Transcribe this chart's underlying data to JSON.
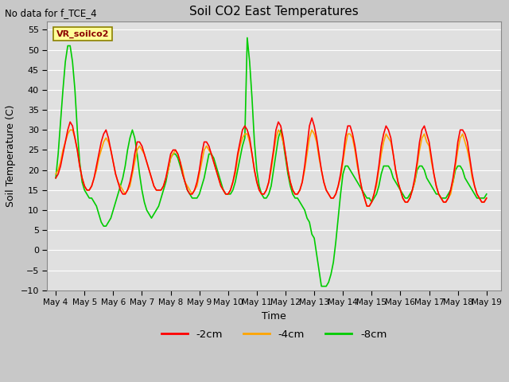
{
  "title": "Soil CO2 East Temperatures",
  "no_data_note": "No data for f_TCE_4",
  "vr_label": "VR_soilco2",
  "xlabel": "Time",
  "ylabel": "Soil Temperature (C)",
  "ylim": [
    -10,
    57
  ],
  "xlim": [
    -0.3,
    15.5
  ],
  "yticks": [
    -10,
    -5,
    0,
    5,
    10,
    15,
    20,
    25,
    30,
    35,
    40,
    45,
    50,
    55
  ],
  "xtick_labels": [
    "May 4",
    "May 5",
    "May 6",
    "May 7",
    "May 8",
    "May 9",
    "May 10",
    "May 11",
    "May 12",
    "May 13",
    "May 14",
    "May 15",
    "May 16",
    "May 17",
    "May 18",
    "May 19"
  ],
  "xtick_positions": [
    0,
    1,
    2,
    3,
    4,
    5,
    6,
    7,
    8,
    9,
    10,
    11,
    12,
    13,
    14,
    15
  ],
  "line_colors": {
    "m2cm": "#ff0000",
    "m4cm": "#ffa500",
    "m8cm": "#00cc00"
  },
  "line_widths": {
    "m2cm": 1.2,
    "m4cm": 1.2,
    "m8cm": 1.2
  },
  "bg_color": "#c8c8c8",
  "plot_bg_color": "#e0e0e0",
  "legend_items": [
    "-2cm",
    "-4cm",
    "-8cm"
  ],
  "legend_colors": [
    "#ff0000",
    "#ffa500",
    "#00cc00"
  ],
  "x_common": [
    0.0,
    0.083,
    0.167,
    0.25,
    0.333,
    0.417,
    0.5,
    0.583,
    0.667,
    0.75,
    0.833,
    0.917,
    1.0,
    1.083,
    1.167,
    1.25,
    1.333,
    1.417,
    1.5,
    1.583,
    1.667,
    1.75,
    1.833,
    1.917,
    2.0,
    2.083,
    2.167,
    2.25,
    2.333,
    2.417,
    2.5,
    2.583,
    2.667,
    2.75,
    2.833,
    2.917,
    3.0,
    3.083,
    3.167,
    3.25,
    3.333,
    3.417,
    3.5,
    3.583,
    3.667,
    3.75,
    3.833,
    3.917,
    4.0,
    4.083,
    4.167,
    4.25,
    4.333,
    4.417,
    4.5,
    4.583,
    4.667,
    4.75,
    4.833,
    4.917,
    5.0,
    5.083,
    5.167,
    5.25,
    5.333,
    5.417,
    5.5,
    5.583,
    5.667,
    5.75,
    5.833,
    5.917,
    6.0,
    6.083,
    6.167,
    6.25,
    6.333,
    6.417,
    6.5,
    6.583,
    6.667,
    6.75,
    6.833,
    6.917,
    7.0,
    7.083,
    7.167,
    7.25,
    7.333,
    7.417,
    7.5,
    7.583,
    7.667,
    7.75,
    7.833,
    7.917,
    8.0,
    8.083,
    8.167,
    8.25,
    8.333,
    8.417,
    8.5,
    8.583,
    8.667,
    8.75,
    8.833,
    8.917,
    9.0,
    9.083,
    9.167,
    9.25,
    9.333,
    9.417,
    9.5,
    9.583,
    9.667,
    9.75,
    9.833,
    9.917,
    10.0,
    10.083,
    10.167,
    10.25,
    10.333,
    10.417,
    10.5,
    10.583,
    10.667,
    10.75,
    10.833,
    10.917,
    11.0,
    11.083,
    11.167,
    11.25,
    11.333,
    11.417,
    11.5,
    11.583,
    11.667,
    11.75,
    11.833,
    11.917,
    12.0,
    12.083,
    12.167,
    12.25,
    12.333,
    12.417,
    12.5,
    12.583,
    12.667,
    12.75,
    12.833,
    12.917,
    13.0,
    13.083,
    13.167,
    13.25,
    13.333,
    13.417,
    13.5,
    13.583,
    13.667,
    13.75,
    13.833,
    13.917,
    14.0,
    14.083,
    14.167,
    14.25,
    14.333,
    14.417,
    14.5,
    14.583,
    14.667,
    14.75,
    14.833,
    14.917,
    15.0
  ],
  "y_m2cm": [
    18,
    19,
    21,
    24,
    27,
    30,
    32,
    31,
    28,
    25,
    21,
    18,
    16,
    15,
    15,
    16,
    18,
    21,
    24,
    27,
    29,
    30,
    28,
    25,
    22,
    19,
    17,
    15,
    14,
    14,
    15,
    17,
    20,
    24,
    27,
    27,
    26,
    24,
    22,
    20,
    18,
    16,
    15,
    15,
    15,
    16,
    18,
    21,
    24,
    25,
    25,
    24,
    22,
    19,
    17,
    15,
    14,
    14,
    15,
    17,
    20,
    24,
    27,
    27,
    26,
    24,
    22,
    20,
    18,
    16,
    15,
    14,
    14,
    15,
    17,
    20,
    24,
    27,
    30,
    31,
    30,
    28,
    24,
    20,
    17,
    15,
    14,
    14,
    15,
    17,
    21,
    25,
    30,
    32,
    31,
    28,
    24,
    20,
    17,
    15,
    14,
    14,
    15,
    17,
    21,
    26,
    31,
    33,
    31,
    28,
    24,
    20,
    17,
    15,
    14,
    13,
    13,
    14,
    16,
    19,
    23,
    28,
    31,
    31,
    29,
    26,
    22,
    18,
    15,
    13,
    11,
    11,
    12,
    14,
    17,
    21,
    26,
    29,
    31,
    30,
    28,
    24,
    20,
    17,
    15,
    13,
    12,
    12,
    13,
    15,
    18,
    22,
    27,
    30,
    31,
    29,
    27,
    23,
    19,
    16,
    14,
    13,
    12,
    12,
    13,
    15,
    18,
    22,
    27,
    30,
    30,
    29,
    27,
    23,
    19,
    16,
    14,
    13,
    12,
    12,
    13
  ],
  "y_m4cm": [
    19,
    20,
    22,
    25,
    27,
    29,
    30,
    30,
    28,
    25,
    21,
    18,
    16,
    15,
    15,
    16,
    18,
    20,
    23,
    25,
    27,
    28,
    27,
    25,
    22,
    19,
    17,
    16,
    15,
    14,
    15,
    16,
    19,
    22,
    25,
    26,
    25,
    24,
    22,
    20,
    18,
    16,
    15,
    15,
    15,
    16,
    18,
    20,
    23,
    24,
    25,
    24,
    22,
    20,
    17,
    16,
    15,
    14,
    15,
    16,
    19,
    22,
    25,
    26,
    25,
    24,
    22,
    20,
    18,
    16,
    15,
    14,
    14,
    15,
    17,
    19,
    23,
    26,
    28,
    29,
    29,
    27,
    24,
    20,
    17,
    15,
    14,
    14,
    15,
    17,
    20,
    24,
    28,
    30,
    29,
    27,
    24,
    20,
    17,
    15,
    14,
    14,
    15,
    17,
    20,
    24,
    28,
    30,
    29,
    27,
    23,
    20,
    17,
    15,
    14,
    13,
    13,
    14,
    16,
    18,
    22,
    26,
    29,
    29,
    28,
    25,
    21,
    18,
    15,
    13,
    11,
    11,
    12,
    14,
    16,
    20,
    24,
    27,
    29,
    28,
    27,
    24,
    20,
    17,
    15,
    13,
    12,
    12,
    13,
    15,
    17,
    21,
    25,
    28,
    29,
    27,
    26,
    22,
    19,
    16,
    14,
    13,
    12,
    12,
    13,
    14,
    17,
    21,
    25,
    28,
    29,
    27,
    25,
    22,
    18,
    16,
    14,
    13,
    12,
    12,
    13
  ],
  "y_m8cm": [
    18,
    24,
    32,
    40,
    47,
    51,
    51,
    47,
    40,
    30,
    22,
    17,
    15,
    14,
    13,
    13,
    12,
    11,
    9,
    7,
    6,
    6,
    7,
    8,
    10,
    12,
    14,
    16,
    18,
    21,
    25,
    28,
    30,
    28,
    24,
    19,
    15,
    12,
    10,
    9,
    8,
    9,
    10,
    11,
    13,
    15,
    17,
    20,
    23,
    24,
    24,
    23,
    21,
    19,
    17,
    15,
    14,
    13,
    13,
    13,
    14,
    16,
    18,
    21,
    24,
    24,
    23,
    21,
    19,
    17,
    15,
    14,
    14,
    14,
    15,
    17,
    20,
    23,
    26,
    28,
    53,
    47,
    38,
    27,
    20,
    16,
    14,
    13,
    13,
    14,
    16,
    20,
    24,
    28,
    30,
    27,
    23,
    19,
    16,
    14,
    13,
    13,
    12,
    11,
    10,
    8,
    7,
    4,
    3,
    -1,
    -5,
    -9,
    -9,
    -9,
    -8,
    -6,
    -3,
    2,
    8,
    14,
    19,
    21,
    21,
    20,
    19,
    18,
    17,
    16,
    15,
    14,
    13,
    13,
    12,
    13,
    14,
    16,
    19,
    21,
    21,
    21,
    20,
    18,
    17,
    16,
    15,
    14,
    13,
    13,
    14,
    15,
    17,
    20,
    21,
    21,
    20,
    18,
    17,
    16,
    15,
    14,
    14,
    13,
    13,
    13,
    14,
    15,
    17,
    20,
    21,
    21,
    20,
    18,
    17,
    16,
    15,
    14,
    13,
    13,
    13,
    13,
    14
  ]
}
